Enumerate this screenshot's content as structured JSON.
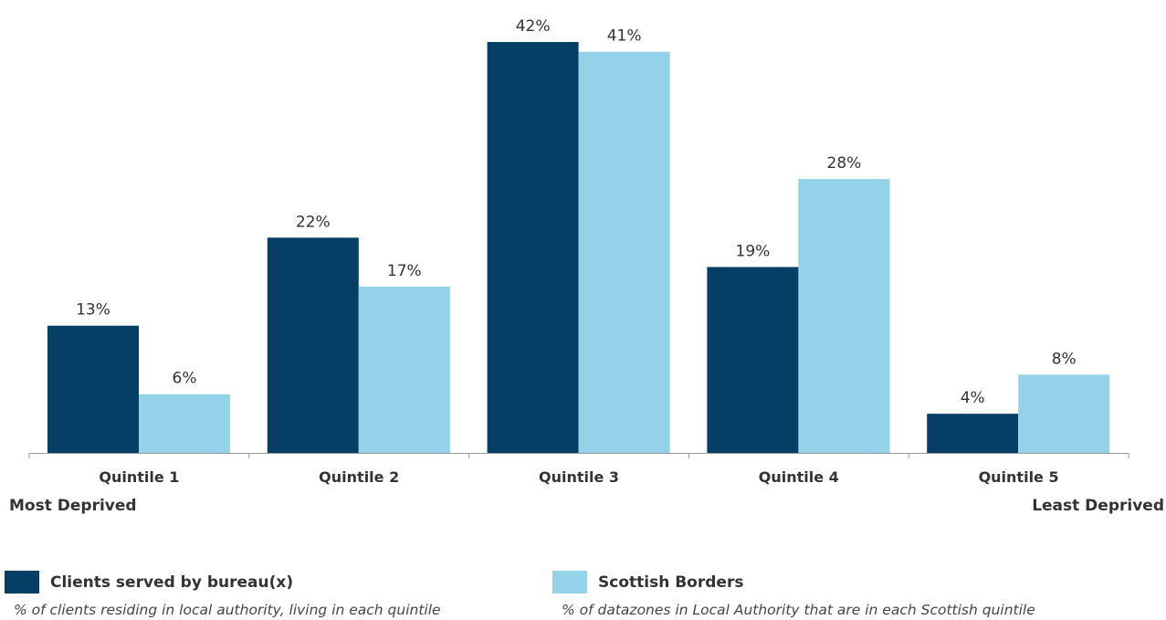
{
  "colors": {
    "series1": "#063f66",
    "series2": "#93d2e9",
    "axis": "#999999",
    "text": "#333333"
  },
  "chart_data": {
    "type": "bar",
    "categories": [
      "Quintile 1",
      "Quintile 2",
      "Quintile 3",
      "Quintile 4",
      "Quintile 5"
    ],
    "series": [
      {
        "name": "Clients served by bureau(x)",
        "values": [
          13,
          22,
          42,
          19,
          4
        ],
        "labels": [
          "13%",
          "22%",
          "42%",
          "19%",
          "4%"
        ]
      },
      {
        "name": "Scottish Borders",
        "values": [
          6,
          17,
          41,
          28,
          8
        ],
        "labels": [
          "6%",
          "17%",
          "41%",
          "28%",
          "8%"
        ]
      }
    ],
    "ylim": [
      0,
      42
    ],
    "grid": false,
    "legend_position": "bottom",
    "x_end_labels": {
      "left": "Most Deprived",
      "right": "Least Deprived"
    }
  },
  "legend": [
    {
      "name": "Clients served by bureau(x)",
      "description": "% of clients residing in local authority, living in each quintile"
    },
    {
      "name": "Scottish Borders",
      "description": "% of datazones in Local Authority that are in each Scottish quintile"
    }
  ]
}
